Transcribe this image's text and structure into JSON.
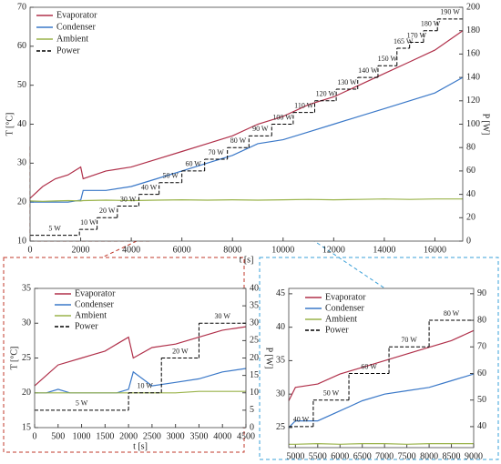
{
  "chart_data": [
    {
      "type": "line",
      "xlabel": "t [s]",
      "ylabel": "T [°C]",
      "y2label": "P [W]",
      "legend": "upper left",
      "xlim": [
        0,
        17100
      ],
      "xticks": [
        0,
        2000,
        4000,
        6000,
        8000,
        10000,
        12000,
        14000,
        16000
      ],
      "ylim": [
        10,
        70
      ],
      "yticks": [
        10,
        20,
        30,
        40,
        50,
        60,
        70
      ],
      "y2lim": [
        0,
        200
      ],
      "y2ticks": [
        0,
        20,
        40,
        60,
        80,
        100,
        120,
        140,
        160,
        180,
        200
      ],
      "series": [
        {
          "name": "Evaporator",
          "color": "#b0304a",
          "x": [
            0,
            500,
            1000,
            1500,
            2000,
            2100,
            3000,
            4000,
            5000,
            6000,
            7000,
            8000,
            9000,
            10000,
            11000,
            12000,
            13000,
            14000,
            15000,
            16000,
            17100
          ],
          "values": [
            21,
            24,
            26,
            27,
            29,
            26,
            28,
            29,
            31,
            33,
            35,
            37,
            40,
            42,
            45,
            47,
            50,
            53,
            56,
            59,
            64
          ]
        },
        {
          "name": "Condenser",
          "color": "#3a78c8",
          "x": [
            0,
            500,
            1000,
            1500,
            2000,
            2100,
            3000,
            4000,
            5000,
            6000,
            7000,
            8000,
            9000,
            10000,
            11000,
            12000,
            13000,
            14000,
            15000,
            16000,
            17100
          ],
          "values": [
            20,
            20,
            20,
            20,
            20.5,
            23,
            23,
            24,
            26,
            28,
            30,
            32,
            35,
            36,
            38,
            40,
            42,
            44,
            46,
            48,
            52
          ]
        },
        {
          "name": "Ambient",
          "color": "#9ab34a",
          "x": [
            0,
            500,
            1000,
            1500,
            2000,
            2100,
            3000,
            4000,
            5000,
            6000,
            7000,
            8000,
            9000,
            10000,
            11000,
            12000,
            13000,
            14000,
            15000,
            16000,
            17100
          ],
          "values": [
            20.3,
            20.2,
            20.3,
            20.4,
            20.3,
            20.4,
            20.5,
            20.4,
            20.5,
            20.6,
            20.5,
            20.6,
            20.5,
            20.6,
            20.7,
            20.6,
            20.7,
            20.8,
            20.7,
            20.8,
            20.8
          ]
        },
        {
          "name": "Power",
          "color": "#000000",
          "axis": "y2",
          "dashed": true,
          "drawstyle": "steps-post",
          "x": [
            0,
            1950,
            2650,
            3450,
            4300,
            5100,
            6000,
            6900,
            7800,
            8650,
            9550,
            10400,
            11250,
            12100,
            12950,
            13750,
            14500,
            15000,
            15550,
            16100
          ],
          "values": [
            5,
            10,
            20,
            30,
            40,
            50,
            60,
            70,
            80,
            90,
            100,
            110,
            120,
            130,
            140,
            150,
            165,
            170,
            180,
            190
          ],
          "value_labels": [
            "5 W",
            "10 W",
            "20 W",
            "30 W",
            "40 W",
            "50 W",
            "60 W",
            "70 W",
            "80 W",
            "90 W",
            "100 W",
            "110 W",
            "120 W",
            "130 W",
            "140 W",
            "150 W",
            "165 W",
            "170 W",
            "180 W",
            "190 W"
          ]
        }
      ]
    },
    {
      "type": "line",
      "xlabel": "t [s]",
      "ylabel": "T [°C]",
      "y2label": "P [W]",
      "legend": "upper left",
      "xlim": [
        0,
        4500
      ],
      "xticks": [
        0,
        500,
        1000,
        1500,
        2000,
        2500,
        3000,
        3500,
        4000,
        4500
      ],
      "ylim": [
        15,
        35
      ],
      "yticks": [
        15,
        20,
        25,
        30,
        35
      ],
      "y2lim": [
        0,
        40
      ],
      "y2ticks": [
        0,
        5,
        10,
        15,
        20,
        25,
        30,
        35,
        40
      ],
      "series": [
        {
          "name": "Evaporator",
          "color": "#b0304a",
          "x": [
            0,
            250,
            500,
            750,
            1000,
            1250,
            1500,
            1750,
            2000,
            2100,
            2500,
            3000,
            3500,
            4000,
            4500
          ],
          "values": [
            21,
            22.5,
            24,
            24.5,
            25,
            25.5,
            26,
            27,
            28,
            25,
            26.5,
            27,
            28,
            29,
            29.5
          ]
        },
        {
          "name": "Condenser",
          "color": "#3a78c8",
          "x": [
            0,
            250,
            500,
            750,
            1000,
            1250,
            1500,
            1750,
            2000,
            2100,
            2500,
            3000,
            3500,
            4000,
            4500
          ],
          "values": [
            20,
            20,
            20.5,
            20,
            20,
            20,
            20,
            20,
            20.5,
            23,
            21,
            21.5,
            22,
            23,
            23.5
          ]
        },
        {
          "name": "Ambient",
          "color": "#9ab34a",
          "x": [
            0,
            250,
            500,
            750,
            1000,
            1250,
            1500,
            1750,
            2000,
            2100,
            2500,
            3000,
            3500,
            4000,
            4500
          ],
          "values": [
            20,
            20,
            20,
            20,
            20,
            20,
            20,
            20,
            20,
            20,
            20,
            20,
            20.2,
            20.2,
            20.2
          ]
        },
        {
          "name": "Power",
          "color": "#000000",
          "axis": "y2",
          "dashed": true,
          "drawstyle": "steps-post",
          "x": [
            0,
            2000,
            2700,
            3500
          ],
          "values": [
            5,
            10,
            20,
            30
          ],
          "value_labels": [
            "5 W",
            "10 W",
            "20 W",
            "30 W"
          ]
        }
      ]
    },
    {
      "type": "line",
      "legend": "upper left",
      "xlim": [
        4850,
        9000
      ],
      "xticks": [
        5000,
        5500,
        6000,
        6500,
        7000,
        7500,
        8000,
        8500,
        9000
      ],
      "ylim": [
        22,
        45.8
      ],
      "yticks": [
        25,
        30,
        35,
        40,
        45
      ],
      "y2lim": [
        32.1,
        92
      ],
      "y2ticks": [
        40,
        50,
        60,
        70,
        80,
        90
      ],
      "series": [
        {
          "name": "Evaporator",
          "color": "#b0304a",
          "x": [
            4850,
            5000,
            5500,
            6000,
            6500,
            7000,
            7500,
            8000,
            8500,
            9000
          ],
          "values": [
            29,
            31,
            31.5,
            33,
            34,
            35,
            36,
            37,
            38,
            39.5
          ]
        },
        {
          "name": "Condenser",
          "color": "#3a78c8",
          "x": [
            4850,
            5000,
            5500,
            6000,
            6500,
            7000,
            7500,
            8000,
            8500,
            9000
          ],
          "values": [
            25,
            26,
            26,
            27.5,
            29,
            30,
            30.5,
            31,
            32,
            33
          ]
        },
        {
          "name": "Ambient",
          "color": "#9ab34a",
          "x": [
            4850,
            5000,
            5500,
            6000,
            6500,
            7000,
            7500,
            8000,
            8500,
            9000
          ],
          "values": [
            22.5,
            22.5,
            22.6,
            22.5,
            22.6,
            22.6,
            22.5,
            22.6,
            22.6,
            22.6
          ]
        },
        {
          "name": "Power",
          "color": "#000000",
          "axis": "y2",
          "dashed": true,
          "drawstyle": "steps-post",
          "x": [
            4850,
            5400,
            6200,
            7100,
            8000
          ],
          "values": [
            40,
            50,
            60,
            70,
            80
          ],
          "value_labels": [
            "40 W",
            "50 W",
            "60 W",
            "70 W",
            "80 W"
          ]
        }
      ]
    }
  ]
}
